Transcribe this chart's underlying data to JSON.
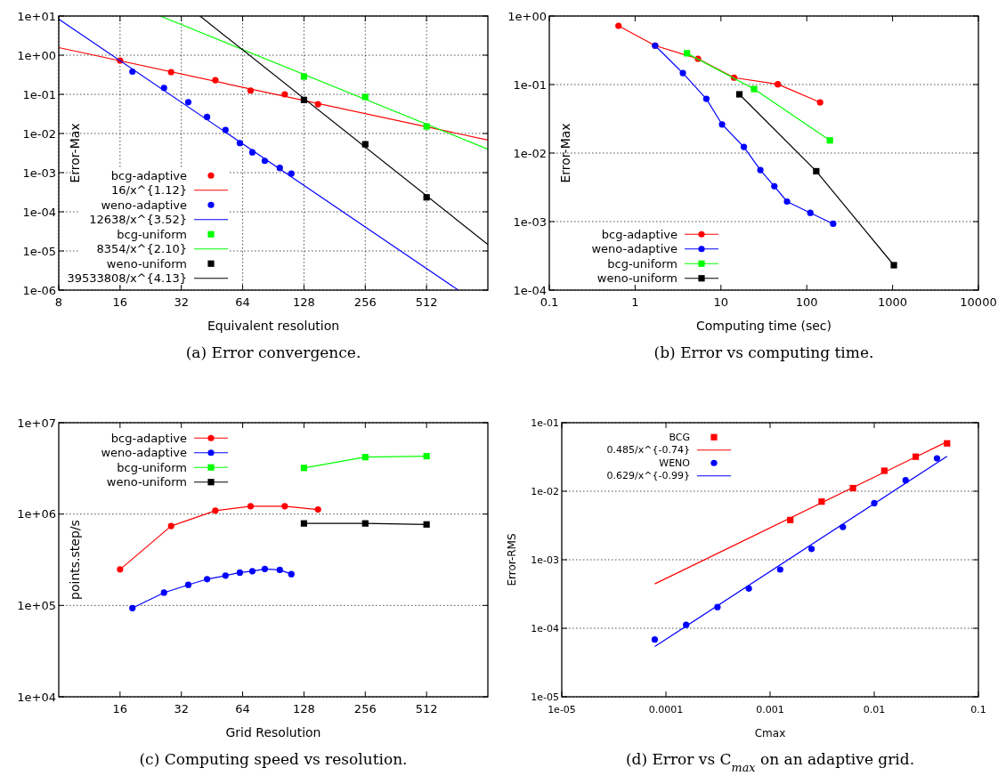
{
  "chart_data": [
    {
      "type": "scatter",
      "xlabel": "Equivalent resolution",
      "ylabel": "Error-Max",
      "annotations": [
        "(a) Error convergence."
      ],
      "log": "xy",
      "grid": true,
      "legend": "bottom left",
      "xlim": [
        8,
        1024
      ],
      "xticks": [
        8,
        16,
        32,
        64,
        128,
        256,
        512
      ],
      "ylim": [
        1e-06,
        10
      ],
      "yticks": [
        {
          "value": 1e-06,
          "label": "1e-06"
        },
        {
          "value": 1e-05,
          "label": "1e-05"
        },
        {
          "value": 0.0001,
          "label": "1e-04"
        },
        {
          "value": 0.001,
          "label": "1e-03"
        },
        {
          "value": 0.01,
          "label": "1e-02"
        },
        {
          "value": 0.1,
          "label": "1e-01"
        },
        {
          "value": 1,
          "label": "1e+00"
        },
        {
          "value": 10,
          "label": "1e+01"
        }
      ],
      "series": [
        {
          "name": "bcg-adaptive",
          "color": "#ff0000",
          "type": "scatter",
          "marker": "circle",
          "x": [
            16,
            28.5,
            47,
            70,
            103,
            150
          ],
          "values": [
            0.73,
            0.37,
            0.23,
            0.125,
            0.1,
            0.056
          ]
        },
        {
          "name": "16/x^{1.12}",
          "color": "#ff0000",
          "type": "line",
          "marker": "none",
          "x": [
            8,
            1024
          ],
          "values": [
            1.56,
            0.0068
          ]
        },
        {
          "name": "weno-adaptive",
          "color": "#0000ff",
          "type": "scatter",
          "marker": "circle",
          "x": [
            18.4,
            26.3,
            34.6,
            42.8,
            52.7,
            62,
            71.4,
            82.2,
            97.4,
            111
          ],
          "values": [
            0.38,
            0.146,
            0.063,
            0.0265,
            0.0123,
            0.0057,
            0.0033,
            0.002,
            0.00132,
            0.00095
          ]
        },
        {
          "name": "12638/x^{3.52}",
          "color": "#0000ff",
          "type": "line",
          "marker": "none",
          "x": [
            8,
            733
          ],
          "values": [
            8.37,
            1e-06
          ]
        },
        {
          "name": "bcg-uniform",
          "color": "#00ff00",
          "type": "scatter",
          "marker": "square",
          "x": [
            128,
            256,
            512
          ],
          "values": [
            0.285,
            0.086,
            0.0151
          ]
        },
        {
          "name": "8354/x^{2.10}",
          "color": "#00ff00",
          "type": "line",
          "marker": "none",
          "x": [
            25.2,
            1024
          ],
          "values": [
            10,
            0.00398
          ]
        },
        {
          "name": "weno-uniform",
          "color": "#000000",
          "type": "scatter",
          "marker": "square",
          "x": [
            128,
            256,
            512
          ],
          "values": [
            0.072,
            0.0053,
            0.000234
          ]
        },
        {
          "name": "39533808/x^{4.13}",
          "color": "#000000",
          "type": "line",
          "marker": "none",
          "x": [
            39.5,
            1024
          ],
          "values": [
            10,
            1.46e-05
          ]
        }
      ]
    },
    {
      "type": "line",
      "xlabel": "Computing time (sec)",
      "ylabel": "Error-Max",
      "annotations": [
        "(b) Error vs computing time."
      ],
      "log": "xy",
      "grid": "y",
      "legend": "bottom left",
      "xlim": [
        0.1,
        10000
      ],
      "xticks": [
        0.1,
        1,
        10,
        100,
        1000,
        10000
      ],
      "ylim": [
        0.0001,
        1
      ],
      "yticks": [
        {
          "value": 0.0001,
          "label": "1e-04"
        },
        {
          "value": 0.001,
          "label": "1e-03"
        },
        {
          "value": 0.01,
          "label": "1e-02"
        },
        {
          "value": 0.1,
          "label": "1e-01"
        },
        {
          "value": 1,
          "label": "1e+00"
        }
      ],
      "series": [
        {
          "name": "bcg-adaptive",
          "color": "#ff0000",
          "marker": "circle",
          "x": [
            0.64,
            1.71,
            5.4,
            14.2,
            46,
            143
          ],
          "values": [
            0.72,
            0.37,
            0.238,
            0.126,
            0.101,
            0.055
          ]
        },
        {
          "name": "weno-adaptive",
          "color": "#0000ff",
          "marker": "circle",
          "x": [
            1.71,
            3.6,
            6.76,
            10.3,
            18.5,
            28.8,
            41.9,
            58.9,
            110,
            203
          ],
          "values": [
            0.37,
            0.147,
            0.0618,
            0.0262,
            0.0123,
            0.00566,
            0.00328,
            0.00196,
            0.00134,
            0.00093
          ]
        },
        {
          "name": "bcg-uniform",
          "color": "#00ff00",
          "marker": "square",
          "x": [
            4.02,
            24.3,
            186
          ],
          "values": [
            0.286,
            0.086,
            0.0153
          ]
        },
        {
          "name": "weno-uniform",
          "color": "#000000",
          "marker": "square",
          "x": [
            16.4,
            129,
            1035
          ],
          "values": [
            0.072,
            0.00543,
            0.000231
          ]
        }
      ]
    },
    {
      "type": "line",
      "xlabel": "Grid Resolution",
      "ylabel": "points.step/s",
      "annotations": [
        "(c) Computing speed vs resolution."
      ],
      "log": "xy",
      "grid": "y",
      "legend": "top left",
      "xlim": [
        8,
        1024
      ],
      "xticks": [
        16,
        32,
        64,
        128,
        256,
        512
      ],
      "ylim": [
        10000,
        10000000
      ],
      "yticks": [
        {
          "value": 10000,
          "label": "1e+04"
        },
        {
          "value": 100000,
          "label": "1e+05"
        },
        {
          "value": 1000000,
          "label": "1e+06"
        },
        {
          "value": 10000000,
          "label": "1e+07"
        }
      ],
      "series": [
        {
          "name": "bcg-adaptive",
          "color": "#ff0000",
          "marker": "circle",
          "x": [
            16,
            28.5,
            47,
            70,
            103,
            150
          ],
          "values": [
            248000,
            740000,
            1090000,
            1220000,
            1220000,
            1120000
          ]
        },
        {
          "name": "weno-adaptive",
          "color": "#0000ff",
          "marker": "circle",
          "x": [
            18.4,
            26.3,
            34.6,
            42.8,
            52.7,
            62,
            71.4,
            82.2,
            97.4,
            111
          ],
          "values": [
            93500,
            138000,
            168000,
            194000,
            212000,
            229000,
            237000,
            251000,
            245000,
            220000
          ]
        },
        {
          "name": "bcg-uniform",
          "color": "#00ff00",
          "marker": "square",
          "x": [
            128,
            256,
            512
          ],
          "values": [
            3200000,
            4200000,
            4300000
          ]
        },
        {
          "name": "weno-uniform",
          "color": "#000000",
          "marker": "square",
          "x": [
            128,
            256,
            512
          ],
          "values": [
            790000,
            790000,
            770000
          ]
        }
      ]
    },
    {
      "type": "scatter",
      "xlabel": "Cmax",
      "ylabel": "Error-RMS",
      "annotations": [
        "(d) Error vs C$_{max}$ on an adaptive grid."
      ],
      "log": "xy",
      "grid": "y",
      "legend": "top left",
      "xlim": [
        1e-05,
        0.1
      ],
      "xticks": [
        {
          "value": 1e-05,
          "label": "1e-05"
        },
        0.0001,
        0.001,
        0.01,
        0.1
      ],
      "ylim": [
        1e-05,
        0.1
      ],
      "yticks": [
        {
          "value": 1e-05,
          "label": "1e-05"
        },
        {
          "value": 0.0001,
          "label": "1e-04"
        },
        {
          "value": 0.001,
          "label": "1e-03"
        },
        {
          "value": 0.01,
          "label": "1e-02"
        },
        {
          "value": 0.1,
          "label": "1e-01"
        }
      ],
      "series": [
        {
          "name": "BCG",
          "color": "#ff0000",
          "type": "scatter",
          "marker": "square",
          "x": [
            0.0015625,
            0.003125,
            0.00625,
            0.0125,
            0.025,
            0.05
          ],
          "values": [
            0.0038,
            0.00706,
            0.0111,
            0.0199,
            0.0319,
            0.0499
          ]
        },
        {
          "name": "0.485/x^{-0.74}",
          "color": "#ff0000",
          "type": "line",
          "marker": "none",
          "x": [
            7.8125e-05,
            0.05
          ],
          "values": [
            0.000444,
            0.0528
          ]
        },
        {
          "name": "WENO",
          "color": "#0000ff",
          "type": "scatter",
          "marker": "circle",
          "x": [
            7.8125e-05,
            0.00015625,
            0.0003125,
            0.000625,
            0.00125,
            0.0025,
            0.005,
            0.01,
            0.02,
            0.04
          ],
          "values": [
            6.84e-05,
            0.000112,
            0.000204,
            0.00038,
            0.00072,
            0.00144,
            0.003,
            0.0067,
            0.01446,
            0.0302
          ]
        },
        {
          "name": "0.629/x^{-0.99}",
          "color": "#0000ff",
          "type": "line",
          "marker": "none",
          "x": [
            7.8125e-05,
            0.05
          ],
          "values": [
            5.4e-05,
            0.0324
          ]
        }
      ]
    }
  ]
}
